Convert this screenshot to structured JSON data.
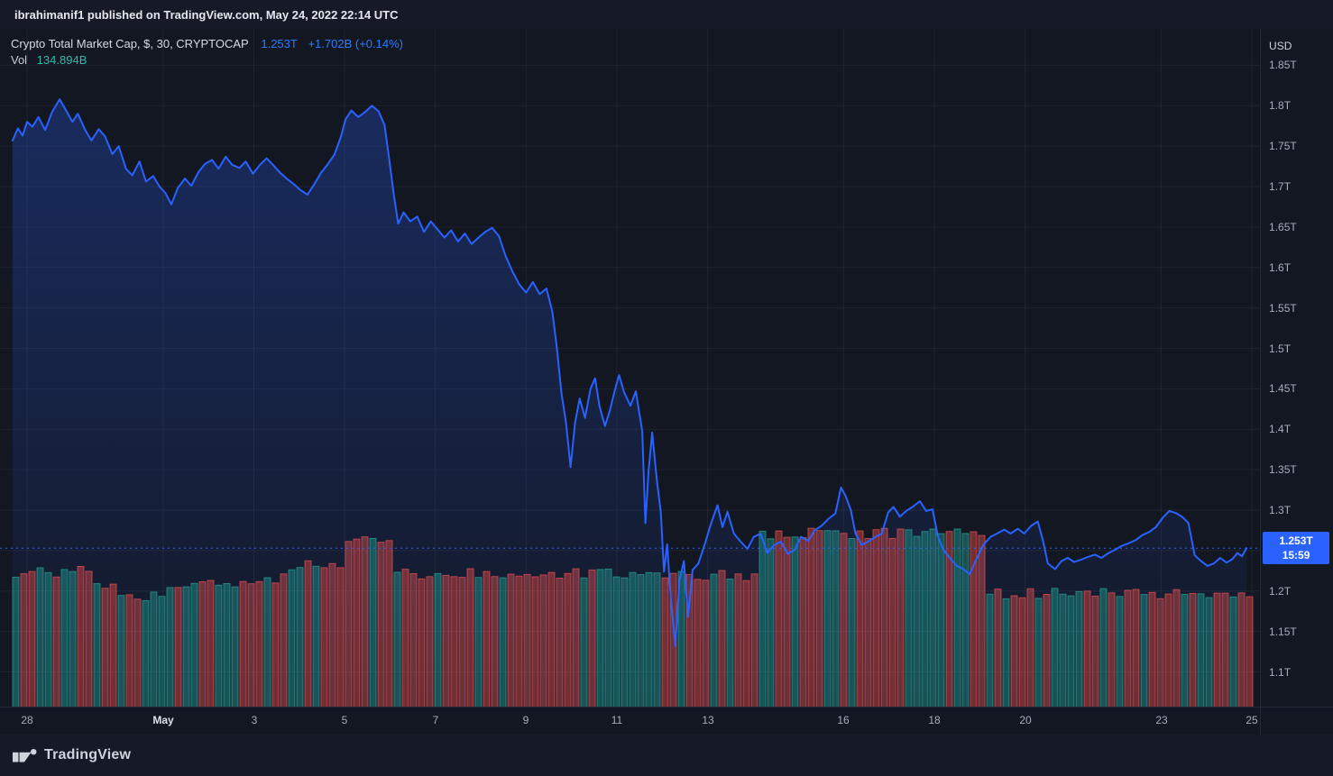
{
  "banner": {
    "text": "ibrahimanif1 published on TradingView.com, May 24, 2022 22:14 UTC"
  },
  "legend": {
    "title": "Crypto Total Market Cap, $, 30, CRYPTOCAP",
    "last_value": "1.253T",
    "change": "+1.702B (+0.14%)",
    "vol_label": "Vol",
    "vol_value": "134.894B"
  },
  "price_axis": {
    "currency": "USD",
    "badge_price": "1.253T",
    "badge_time": "15:59"
  },
  "footer": {
    "logo_text": "TradingView"
  },
  "colors": {
    "background": "#131722",
    "panel": "#151a26",
    "accent_blue": "#2962ff",
    "legend_blue_text": "#2e7cff",
    "volume_up": "#26a69a",
    "volume_down": "#ef5350",
    "teal_text": "#2fbcab",
    "text_primary": "#d6dae1",
    "text_secondary": "#a8aeba",
    "grid": "#363a45"
  },
  "chart_data": {
    "type": "area",
    "title": "Crypto Total Market Cap",
    "symbol": "CRYPTOCAP",
    "interval": "30",
    "currency": "USD",
    "legend_title": "Crypto Total Market Cap, $, 30, CRYPTOCAP",
    "last_price": "1.253T",
    "change_abs": "+1.702B",
    "change_pct": "+0.14%",
    "current_price": 1.253,
    "line_color": "#2962ff",
    "x_unit": "days since Apr 28 2022 (UTC)",
    "ylim": [
      1.056,
      1.895
    ],
    "grid": true,
    "x_ticks": [
      {
        "label": "28",
        "day": 0
      },
      {
        "label": "May",
        "day": 3,
        "major": true
      },
      {
        "label": "3",
        "day": 5
      },
      {
        "label": "5",
        "day": 7
      },
      {
        "label": "7",
        "day": 9
      },
      {
        "label": "9",
        "day": 11
      },
      {
        "label": "11",
        "day": 13
      },
      {
        "label": "13",
        "day": 15
      },
      {
        "label": "16",
        "day": 18
      },
      {
        "label": "18",
        "day": 20
      },
      {
        "label": "20",
        "day": 22
      },
      {
        "label": "23",
        "day": 25
      },
      {
        "label": "25",
        "day": 27
      }
    ],
    "y_ticks": [
      {
        "value": 1.85,
        "label": "1.85T"
      },
      {
        "value": 1.8,
        "label": "1.8T"
      },
      {
        "value": 1.75,
        "label": "1.75T"
      },
      {
        "value": 1.7,
        "label": "1.7T"
      },
      {
        "value": 1.65,
        "label": "1.65T"
      },
      {
        "value": 1.6,
        "label": "1.6T"
      },
      {
        "value": 1.55,
        "label": "1.55T"
      },
      {
        "value": 1.5,
        "label": "1.5T"
      },
      {
        "value": 1.45,
        "label": "1.45T"
      },
      {
        "value": 1.4,
        "label": "1.4T"
      },
      {
        "value": 1.35,
        "label": "1.35T"
      },
      {
        "value": 1.3,
        "label": "1.3T"
      },
      {
        "value": 1.25,
        "label": "1.25T"
      },
      {
        "value": 1.2,
        "label": "1.2T"
      },
      {
        "value": 1.15,
        "label": "1.15T"
      },
      {
        "value": 1.1,
        "label": "1.1T"
      }
    ],
    "series": [
      {
        "name": "Total Market Cap (T USD)",
        "points": [
          [
            -0.32,
            1.757
          ],
          [
            -0.2,
            1.772
          ],
          [
            -0.1,
            1.763
          ],
          [
            0.0,
            1.78
          ],
          [
            0.12,
            1.774
          ],
          [
            0.25,
            1.786
          ],
          [
            0.4,
            1.77
          ],
          [
            0.55,
            1.792
          ],
          [
            0.72,
            1.808
          ],
          [
            0.85,
            1.795
          ],
          [
            1.0,
            1.78
          ],
          [
            1.12,
            1.79
          ],
          [
            1.28,
            1.77
          ],
          [
            1.42,
            1.757
          ],
          [
            1.58,
            1.771
          ],
          [
            1.72,
            1.762
          ],
          [
            1.88,
            1.74
          ],
          [
            2.02,
            1.75
          ],
          [
            2.18,
            1.722
          ],
          [
            2.32,
            1.714
          ],
          [
            2.48,
            1.731
          ],
          [
            2.62,
            1.706
          ],
          [
            2.78,
            1.713
          ],
          [
            2.92,
            1.7
          ],
          [
            3.05,
            1.692
          ],
          [
            3.18,
            1.678
          ],
          [
            3.32,
            1.698
          ],
          [
            3.48,
            1.71
          ],
          [
            3.62,
            1.701
          ],
          [
            3.78,
            1.718
          ],
          [
            3.92,
            1.728
          ],
          [
            4.08,
            1.733
          ],
          [
            4.22,
            1.722
          ],
          [
            4.38,
            1.737
          ],
          [
            4.52,
            1.727
          ],
          [
            4.68,
            1.723
          ],
          [
            4.82,
            1.731
          ],
          [
            4.98,
            1.716
          ],
          [
            5.12,
            1.726
          ],
          [
            5.28,
            1.735
          ],
          [
            5.42,
            1.727
          ],
          [
            5.58,
            1.717
          ],
          [
            5.72,
            1.71
          ],
          [
            5.88,
            1.703
          ],
          [
            6.02,
            1.696
          ],
          [
            6.18,
            1.69
          ],
          [
            6.32,
            1.702
          ],
          [
            6.48,
            1.717
          ],
          [
            6.62,
            1.727
          ],
          [
            6.78,
            1.74
          ],
          [
            6.92,
            1.762
          ],
          [
            7.02,
            1.783
          ],
          [
            7.15,
            1.794
          ],
          [
            7.3,
            1.786
          ],
          [
            7.45,
            1.792
          ],
          [
            7.6,
            1.8
          ],
          [
            7.75,
            1.793
          ],
          [
            7.88,
            1.776
          ],
          [
            7.98,
            1.735
          ],
          [
            8.08,
            1.692
          ],
          [
            8.18,
            1.654
          ],
          [
            8.3,
            1.668
          ],
          [
            8.45,
            1.657
          ],
          [
            8.6,
            1.663
          ],
          [
            8.75,
            1.644
          ],
          [
            8.9,
            1.657
          ],
          [
            9.05,
            1.647
          ],
          [
            9.2,
            1.637
          ],
          [
            9.35,
            1.646
          ],
          [
            9.5,
            1.632
          ],
          [
            9.65,
            1.642
          ],
          [
            9.8,
            1.629
          ],
          [
            9.95,
            1.637
          ],
          [
            10.1,
            1.644
          ],
          [
            10.25,
            1.649
          ],
          [
            10.4,
            1.639
          ],
          [
            10.55,
            1.614
          ],
          [
            10.7,
            1.595
          ],
          [
            10.85,
            1.579
          ],
          [
            11.0,
            1.569
          ],
          [
            11.15,
            1.582
          ],
          [
            11.3,
            1.567
          ],
          [
            11.45,
            1.574
          ],
          [
            11.58,
            1.545
          ],
          [
            11.68,
            1.5
          ],
          [
            11.78,
            1.445
          ],
          [
            11.88,
            1.408
          ],
          [
            11.98,
            1.353
          ],
          [
            12.08,
            1.408
          ],
          [
            12.18,
            1.438
          ],
          [
            12.3,
            1.414
          ],
          [
            12.42,
            1.45
          ],
          [
            12.52,
            1.463
          ],
          [
            12.62,
            1.428
          ],
          [
            12.74,
            1.404
          ],
          [
            12.85,
            1.424
          ],
          [
            12.95,
            1.447
          ],
          [
            13.05,
            1.467
          ],
          [
            13.16,
            1.446
          ],
          [
            13.3,
            1.429
          ],
          [
            13.42,
            1.447
          ],
          [
            13.5,
            1.419
          ],
          [
            13.56,
            1.398
          ],
          [
            13.63,
            1.284
          ],
          [
            13.7,
            1.348
          ],
          [
            13.78,
            1.396
          ],
          [
            13.88,
            1.338
          ],
          [
            13.97,
            1.297
          ],
          [
            14.04,
            1.224
          ],
          [
            14.11,
            1.258
          ],
          [
            14.19,
            1.19
          ],
          [
            14.29,
            1.132
          ],
          [
            14.38,
            1.213
          ],
          [
            14.48,
            1.237
          ],
          [
            14.57,
            1.168
          ],
          [
            14.67,
            1.226
          ],
          [
            14.8,
            1.234
          ],
          [
            14.94,
            1.258
          ],
          [
            15.08,
            1.284
          ],
          [
            15.22,
            1.306
          ],
          [
            15.33,
            1.279
          ],
          [
            15.44,
            1.298
          ],
          [
            15.58,
            1.271
          ],
          [
            15.73,
            1.261
          ],
          [
            15.88,
            1.252
          ],
          [
            16.02,
            1.267
          ],
          [
            16.17,
            1.271
          ],
          [
            16.32,
            1.247
          ],
          [
            16.47,
            1.257
          ],
          [
            16.62,
            1.261
          ],
          [
            16.77,
            1.246
          ],
          [
            16.92,
            1.251
          ],
          [
            17.06,
            1.267
          ],
          [
            17.22,
            1.262
          ],
          [
            17.36,
            1.275
          ],
          [
            17.52,
            1.281
          ],
          [
            17.66,
            1.289
          ],
          [
            17.82,
            1.296
          ],
          [
            17.94,
            1.328
          ],
          [
            18.04,
            1.318
          ],
          [
            18.16,
            1.3
          ],
          [
            18.26,
            1.271
          ],
          [
            18.4,
            1.257
          ],
          [
            18.54,
            1.261
          ],
          [
            18.7,
            1.267
          ],
          [
            18.84,
            1.271
          ],
          [
            18.98,
            1.297
          ],
          [
            19.1,
            1.304
          ],
          [
            19.24,
            1.292
          ],
          [
            19.38,
            1.299
          ],
          [
            19.52,
            1.304
          ],
          [
            19.68,
            1.311
          ],
          [
            19.82,
            1.299
          ],
          [
            19.96,
            1.301
          ],
          [
            20.08,
            1.267
          ],
          [
            20.2,
            1.251
          ],
          [
            20.34,
            1.241
          ],
          [
            20.5,
            1.231
          ],
          [
            20.64,
            1.227
          ],
          [
            20.78,
            1.221
          ],
          [
            20.94,
            1.241
          ],
          [
            21.08,
            1.257
          ],
          [
            21.24,
            1.267
          ],
          [
            21.38,
            1.271
          ],
          [
            21.54,
            1.276
          ],
          [
            21.68,
            1.271
          ],
          [
            21.84,
            1.277
          ],
          [
            21.98,
            1.271
          ],
          [
            22.14,
            1.281
          ],
          [
            22.28,
            1.286
          ],
          [
            22.4,
            1.261
          ],
          [
            22.5,
            1.234
          ],
          [
            22.66,
            1.227
          ],
          [
            22.8,
            1.237
          ],
          [
            22.94,
            1.241
          ],
          [
            23.08,
            1.236
          ],
          [
            23.24,
            1.239
          ],
          [
            23.38,
            1.242
          ],
          [
            23.54,
            1.245
          ],
          [
            23.68,
            1.241
          ],
          [
            23.84,
            1.247
          ],
          [
            23.98,
            1.251
          ],
          [
            24.14,
            1.256
          ],
          [
            24.28,
            1.259
          ],
          [
            24.44,
            1.263
          ],
          [
            24.58,
            1.269
          ],
          [
            24.74,
            1.273
          ],
          [
            24.88,
            1.279
          ],
          [
            25.04,
            1.291
          ],
          [
            25.18,
            1.299
          ],
          [
            25.34,
            1.296
          ],
          [
            25.48,
            1.291
          ],
          [
            25.6,
            1.284
          ],
          [
            25.74,
            1.244
          ],
          [
            25.88,
            1.237
          ],
          [
            26.02,
            1.231
          ],
          [
            26.16,
            1.234
          ],
          [
            26.3,
            1.241
          ],
          [
            26.44,
            1.235
          ],
          [
            26.56,
            1.239
          ],
          [
            26.68,
            1.247
          ],
          [
            26.78,
            1.243
          ],
          [
            26.88,
            1.253
          ]
        ]
      }
    ],
    "volume": {
      "current": "134.894B",
      "up_color": "#26a69a",
      "down_color": "#ef5350",
      "profile": [
        {
          "from": -0.5,
          "to": 1.3,
          "h": 0.78
        },
        {
          "from": 1.3,
          "to": 1.9,
          "h": 0.71
        },
        {
          "from": 1.9,
          "to": 2.6,
          "h": 0.64
        },
        {
          "from": 2.6,
          "to": 3.5,
          "h": 0.67
        },
        {
          "from": 3.5,
          "to": 4.6,
          "h": 0.71
        },
        {
          "from": 4.6,
          "to": 5.7,
          "h": 0.74
        },
        {
          "from": 5.7,
          "to": 7.0,
          "h": 0.82
        },
        {
          "from": 7.0,
          "to": 7.95,
          "h": 0.97
        },
        {
          "from": 7.95,
          "to": 14.1,
          "h": 0.77
        },
        {
          "from": 14.1,
          "to": 16.1,
          "h": 0.76
        },
        {
          "from": 16.1,
          "to": 21.0,
          "h": 1.0
        },
        {
          "from": 21.0,
          "to": 27.05,
          "h": 0.655
        }
      ]
    }
  }
}
